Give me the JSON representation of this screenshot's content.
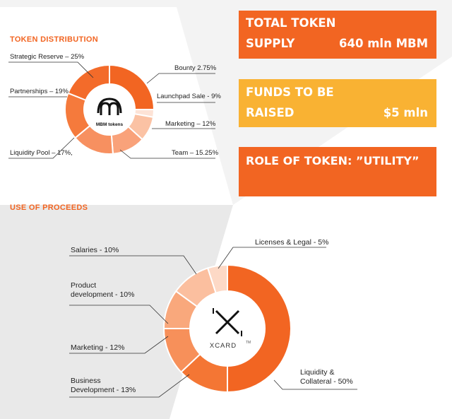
{
  "token_distribution": {
    "title": "TOKEN DISTRIBUTION",
    "center_label": "MBM tokens",
    "labels": {
      "strategic": "Strategic Reserve – 25%",
      "partnerships": "Partnerships – 19%",
      "liquidity": "Liquidity Pool – 17%,",
      "bounty": "Bounty 2.75%",
      "launchpad": "Launchpad Sale - 9%",
      "marketing": "Marketing – 12%",
      "team": "Team – 15.25%"
    }
  },
  "boxes": {
    "supply_line1": "TOTAL  TOKEN",
    "supply_line2": "SUPPLY",
    "supply_value": "640 mln MBM",
    "funds_line1": "FUNDS TO   BE",
    "funds_line2": "RAISED",
    "funds_value": "$5 mln",
    "role": "ROLE OF TOKEN: ”UTILITY”"
  },
  "use_of_proceeds": {
    "title": "USE  OF  PROCEEDS",
    "center_label": "XCARD",
    "center_tm": "TM",
    "labels": {
      "licenses": "Licenses & Legal - 5%",
      "salaries": "Salaries - 10%",
      "product1": "Product",
      "product2": "development - 10%",
      "marketing": "Marketing - 12%",
      "business1": "Business",
      "business2": "Development - 13%",
      "liquidity1": "Liquidity &",
      "liquidity2": "Collateral - 50%"
    }
  },
  "colors": {
    "orange": "#f26522",
    "gold": "#f9b233",
    "background": "#f3f3f3"
  },
  "chart_data": [
    {
      "type": "pie",
      "title": "TOKEN DISTRIBUTION",
      "categories": [
        "Strategic Reserve",
        "Bounty",
        "Launchpad Sale",
        "Marketing",
        "Team",
        "Liquidity Pool",
        "Partnerships"
      ],
      "values": [
        25,
        2.75,
        9,
        12,
        15.25,
        17,
        19
      ],
      "colors": [
        "#f26522",
        "#fde3d6",
        "#fbc2a4",
        "#f9a27a",
        "#f79060",
        "#f57a3c",
        "#f36b2a"
      ]
    },
    {
      "type": "pie",
      "title": "USE  OF  PROCEEDS",
      "categories": [
        "Liquidity & Collateral",
        "Business Development",
        "Marketing",
        "Product development",
        "Salaries",
        "Licenses & Legal"
      ],
      "values": [
        50,
        13,
        12,
        10,
        10,
        5
      ],
      "colors": [
        "#f26522",
        "#f47634",
        "#f7905a",
        "#f9a87c",
        "#fbbf9f",
        "#fdd9c6"
      ]
    }
  ]
}
